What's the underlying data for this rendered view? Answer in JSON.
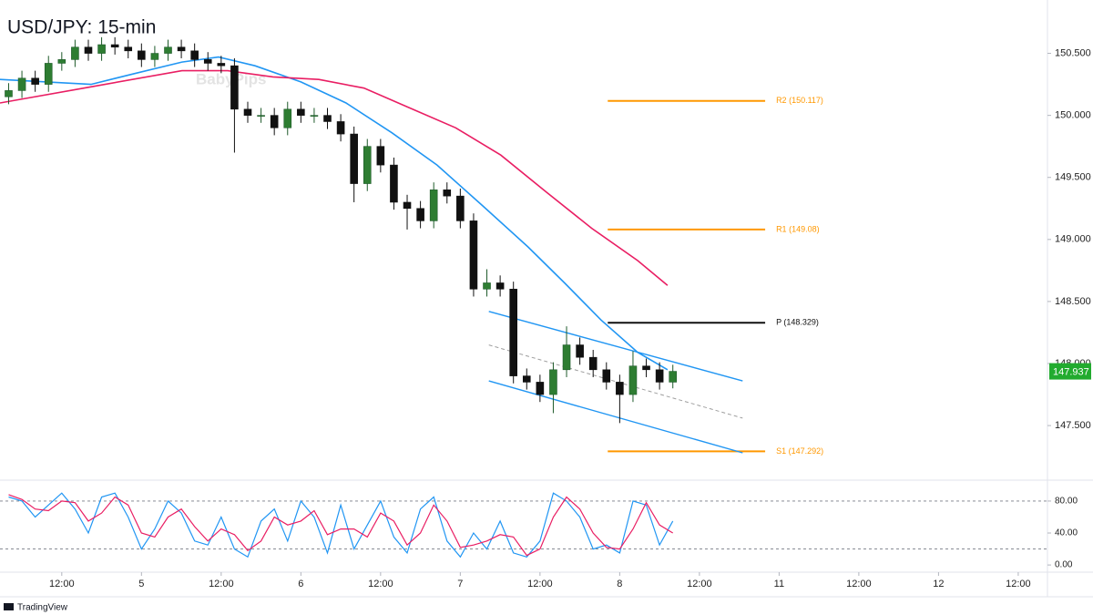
{
  "chart_data": {
    "type": "candlestick",
    "title": "USD/JPY: 15-min",
    "watermark": "BabyPips",
    "source": "TradingView",
    "up_color": "#1e5a2a",
    "down_color": "#111111",
    "x": [
      4,
      6,
      8,
      10,
      12,
      14,
      16,
      18,
      20,
      22,
      24,
      26,
      28,
      30,
      32,
      34,
      36,
      38,
      40,
      42,
      44,
      46,
      48,
      50,
      52,
      54,
      56,
      58,
      60,
      62,
      64,
      66,
      68,
      70,
      72,
      74,
      76,
      78,
      80,
      82,
      84,
      86,
      88,
      90,
      92,
      94,
      96,
      98,
      100,
      102,
      104
    ],
    "open": [
      150.15,
      150.2,
      150.3,
      150.25,
      150.42,
      150.45,
      150.55,
      150.5,
      150.57,
      150.55,
      150.52,
      150.45,
      150.5,
      150.55,
      150.52,
      150.45,
      150.42,
      150.4,
      150.05,
      150.0,
      150.0,
      149.9,
      150.05,
      150.0,
      150.0,
      149.95,
      149.85,
      149.45,
      149.75,
      149.6,
      149.3,
      149.25,
      149.15,
      149.4,
      149.35,
      149.15,
      148.6,
      148.65,
      148.6,
      147.9,
      147.85,
      147.75,
      147.95,
      148.15,
      148.05,
      147.95,
      147.85,
      147.75,
      147.98,
      147.95,
      147.85
    ],
    "high": [
      150.26,
      150.36,
      150.36,
      150.48,
      150.51,
      150.61,
      150.61,
      150.63,
      150.63,
      150.61,
      150.58,
      150.56,
      150.61,
      150.61,
      150.58,
      150.51,
      150.48,
      150.46,
      150.11,
      150.06,
      150.06,
      150.11,
      150.11,
      150.06,
      150.06,
      150.01,
      149.91,
      149.81,
      149.81,
      149.66,
      149.36,
      149.31,
      149.46,
      149.46,
      149.41,
      149.21,
      148.76,
      148.71,
      148.66,
      147.96,
      147.91,
      148.01,
      148.3,
      148.21,
      148.11,
      148.01,
      147.91,
      148.1,
      148.04,
      148.01,
      147.99
    ],
    "low": [
      150.09,
      150.14,
      150.19,
      150.19,
      150.36,
      150.39,
      150.44,
      150.44,
      150.49,
      150.46,
      150.39,
      150.39,
      150.44,
      150.46,
      150.39,
      150.36,
      150.34,
      149.7,
      149.94,
      149.94,
      149.84,
      149.84,
      149.94,
      149.94,
      149.89,
      149.79,
      149.3,
      149.39,
      149.54,
      149.24,
      149.08,
      149.09,
      149.09,
      149.29,
      149.09,
      148.54,
      148.54,
      148.54,
      147.84,
      147.79,
      147.69,
      147.6,
      147.89,
      147.99,
      147.89,
      147.79,
      147.52,
      147.69,
      147.89,
      147.79,
      147.8
    ],
    "close": [
      150.2,
      150.3,
      150.25,
      150.42,
      150.45,
      150.55,
      150.5,
      150.57,
      150.55,
      150.52,
      150.45,
      150.5,
      150.55,
      150.52,
      150.45,
      150.42,
      150.4,
      150.05,
      150.0,
      150.0,
      149.9,
      150.05,
      150.0,
      150.0,
      149.95,
      149.85,
      149.45,
      149.75,
      149.6,
      149.3,
      149.25,
      149.15,
      149.4,
      149.35,
      149.15,
      148.6,
      148.65,
      148.6,
      147.9,
      147.85,
      147.75,
      147.95,
      148.15,
      148.05,
      147.95,
      147.85,
      147.75,
      147.98,
      147.95,
      147.85,
      147.937
    ],
    "last_price": 147.937,
    "last_price_color": "#22ab2f",
    "xlim": [
      2.7,
      160.4
    ],
    "xticks": [
      {
        "value": 12,
        "label": "12:00"
      },
      {
        "value": 24,
        "label": "5"
      },
      {
        "value": 36,
        "label": "12:00"
      },
      {
        "value": 48,
        "label": "6"
      },
      {
        "value": 60,
        "label": "12:00"
      },
      {
        "value": 72,
        "label": "7"
      },
      {
        "value": 84,
        "label": "12:00"
      },
      {
        "value": 96,
        "label": "8"
      },
      {
        "value": 108,
        "label": "12:00"
      },
      {
        "value": 120,
        "label": "11"
      },
      {
        "value": 132,
        "label": "12:00"
      },
      {
        "value": 144,
        "label": "12"
      },
      {
        "value": 156,
        "label": "12:00"
      }
    ],
    "ylim": [
      147.06,
      150.93
    ],
    "yticks": [
      {
        "value": 150.5,
        "label": "150.500"
      },
      {
        "value": 150.0,
        "label": "150.000"
      },
      {
        "value": 149.5,
        "label": "149.500"
      },
      {
        "value": 149.0,
        "label": "149.000"
      },
      {
        "value": 148.5,
        "label": "148.500"
      },
      {
        "value": 148.0,
        "label": "148.000"
      },
      {
        "value": 147.5,
        "label": "147.500"
      }
    ],
    "lines": [
      {
        "color": "#2196f3",
        "x": [
          2.7,
          16.4,
          23.2,
          30.1,
          35.6,
          41.1,
          48.0,
          54.8,
          61.7,
          68.5,
          75.4,
          82.2,
          87.7,
          93.2,
          98.7,
          103.2
        ],
        "values": [
          150.29,
          150.25,
          150.34,
          150.43,
          150.47,
          150.4,
          150.27,
          150.1,
          149.86,
          149.6,
          149.27,
          148.94,
          148.65,
          148.35,
          148.09,
          147.95
        ]
      },
      {
        "color": "#e91e63",
        "x": [
          2.7,
          16.4,
          30.1,
          37.0,
          43.8,
          50.7,
          57.5,
          64.4,
          71.3,
          78.1,
          85.0,
          91.8,
          98.7,
          103.2
        ],
        "values": [
          150.1,
          150.23,
          150.36,
          150.36,
          150.31,
          150.29,
          150.22,
          150.06,
          149.9,
          149.68,
          149.38,
          149.09,
          148.83,
          148.63
        ]
      }
    ],
    "channel": [
      {
        "color": "#2196f3",
        "dashed": false,
        "x": [
          76.3,
          114.5
        ],
        "values": [
          148.42,
          147.86
        ]
      },
      {
        "color": "#2196f3",
        "dashed": false,
        "x": [
          76.3,
          114.5
        ],
        "values": [
          147.86,
          147.28
        ]
      },
      {
        "color": "#9e9e9e",
        "dashed": true,
        "x": [
          76.3,
          114.5
        ],
        "values": [
          148.15,
          147.56
        ]
      }
    ],
    "levels": [
      {
        "label": "R2 (150.117)",
        "value": 150.117,
        "color": "#ff9800",
        "x": [
          94.2,
          117.9
        ]
      },
      {
        "label": "R1 (149.08)",
        "value": 149.08,
        "color": "#ff9800",
        "x": [
          94.2,
          117.9
        ]
      },
      {
        "label": "P (148.329)",
        "value": 148.329,
        "color": "#111111",
        "x": [
          94.2,
          117.9
        ]
      },
      {
        "label": "S1 (147.292)",
        "value": 147.292,
        "color": "#ff9800",
        "x": [
          94.2,
          117.9
        ]
      }
    ],
    "oscillator": {
      "ylim": [
        -9,
        105
      ],
      "yticks": [
        {
          "value": 80,
          "label": "80.00"
        },
        {
          "value": 40,
          "label": "40.00"
        },
        {
          "value": 0,
          "label": "0.00"
        }
      ],
      "levels": [
        80,
        20
      ],
      "series": [
        {
          "color": "#2196f3",
          "values": [
            85,
            80,
            60,
            75,
            90,
            70,
            40,
            85,
            90,
            60,
            20,
            45,
            80,
            65,
            30,
            25,
            60,
            20,
            10,
            55,
            70,
            30,
            80,
            60,
            15,
            75,
            20,
            50,
            80,
            35,
            15,
            70,
            85,
            30,
            10,
            40,
            20,
            55,
            15,
            10,
            30,
            90,
            80,
            60,
            20,
            25,
            15,
            80,
            75,
            25,
            55
          ]
        },
        {
          "color": "#e91e63",
          "values": [
            88,
            82,
            70,
            68,
            80,
            78,
            55,
            65,
            85,
            75,
            40,
            35,
            60,
            70,
            48,
            30,
            45,
            38,
            18,
            30,
            60,
            50,
            55,
            68,
            38,
            45,
            45,
            35,
            65,
            55,
            25,
            40,
            75,
            55,
            22,
            25,
            30,
            38,
            35,
            12,
            20,
            60,
            85,
            70,
            40,
            22,
            20,
            45,
            78,
            50,
            40
          ]
        }
      ]
    }
  }
}
